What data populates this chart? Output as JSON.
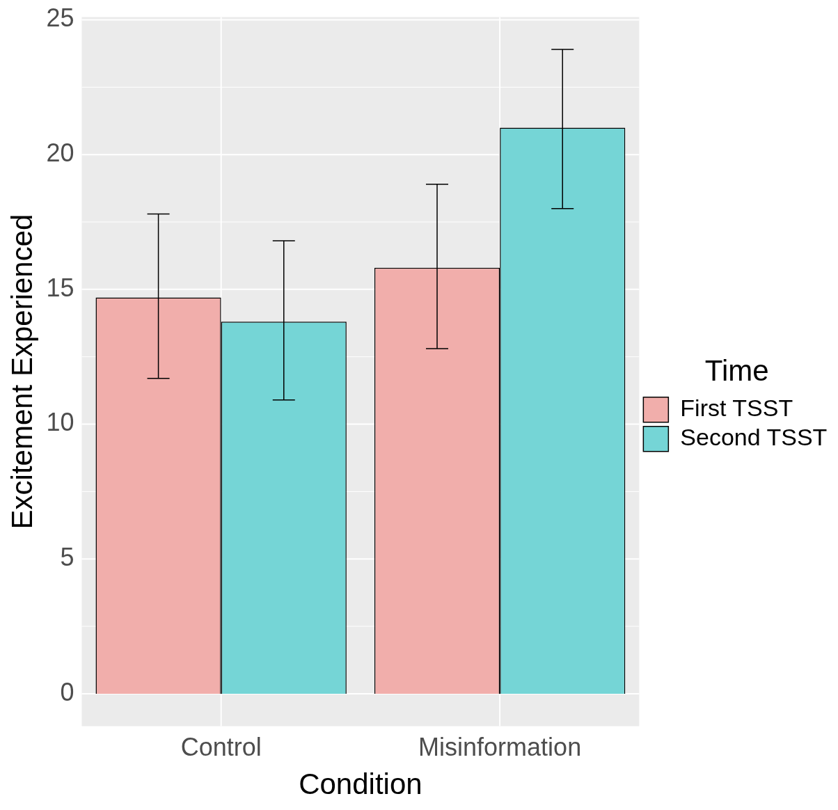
{
  "chart_data": {
    "type": "bar",
    "xlabel": "Condition",
    "ylabel": "Excitement Experienced",
    "legend_title": "Time",
    "categories": [
      "Control",
      "Misinformation"
    ],
    "series": [
      {
        "name": "First TSST",
        "color": "#f1aeab",
        "values": [
          14.7,
          15.8
        ],
        "errors": [
          [
            11.7,
            17.8
          ],
          [
            12.8,
            18.9
          ]
        ]
      },
      {
        "name": "Second TSST",
        "color": "#75d5d6",
        "values": [
          13.8,
          21.0
        ],
        "errors": [
          [
            10.9,
            16.8
          ],
          [
            18.0,
            23.9
          ]
        ]
      }
    ],
    "ylim": [
      -1.2,
      25.1
    ],
    "yticks": [
      0,
      5,
      10,
      15,
      20,
      25
    ],
    "grid": true,
    "legend": "right"
  }
}
